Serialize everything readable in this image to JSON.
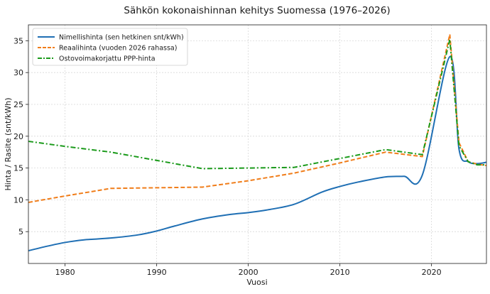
{
  "chart_data": {
    "type": "line",
    "title": "Sähkön kokonaishinnan kehitys Suomessa (1976–2026)",
    "xlabel": "Vuosi",
    "ylabel": "Hinta / Rasite (snt/kWh)",
    "xlim": [
      1976,
      2026
    ],
    "ylim": [
      0,
      37.5
    ],
    "xticks": [
      1980,
      1990,
      2000,
      2010,
      2020
    ],
    "yticks": [
      5,
      10,
      15,
      20,
      25,
      30,
      35
    ],
    "grid": true,
    "legend_position": "top-left",
    "series": [
      {
        "name": "Nimellishinta (sen hetkinen snt/kWh)",
        "color": "#1f6fb4",
        "style": "solid",
        "x": [
          1976,
          1978,
          1980,
          1982,
          1985,
          1988,
          1990,
          1992,
          1995,
          1998,
          2000,
          2002,
          2005,
          2008,
          2010,
          2012,
          2015,
          2017,
          2019,
          2022,
          2023,
          2024,
          2025,
          2026
        ],
        "values": [
          2.0,
          2.7,
          3.3,
          3.7,
          4.0,
          4.5,
          5.1,
          5.9,
          7.0,
          7.7,
          8.0,
          8.4,
          9.3,
          11.2,
          12.1,
          12.8,
          13.6,
          13.7,
          13.9,
          32.5,
          18.0,
          16.0,
          15.7,
          15.9
        ]
      },
      {
        "name": "Reaalihinta (vuoden 2026 rahassa)",
        "color": "#f07d1a",
        "style": "dashed",
        "x": [
          1976,
          1980,
          1985,
          1990,
          1995,
          2000,
          2005,
          2010,
          2015,
          2019,
          2022,
          2023,
          2024,
          2025,
          2026
        ],
        "values": [
          9.6,
          10.6,
          11.8,
          11.9,
          12.0,
          13.0,
          14.2,
          15.8,
          17.5,
          16.8,
          36.0,
          19.0,
          16.0,
          15.6,
          15.4
        ]
      },
      {
        "name": "Ostovoimakorjattu PPP-hinta",
        "color": "#1a9a1a",
        "style": "dashdot",
        "x": [
          1976,
          1980,
          1985,
          1990,
          1995,
          2000,
          2005,
          2010,
          2015,
          2019,
          2022,
          2023,
          2024,
          2025,
          2026
        ],
        "values": [
          19.2,
          18.4,
          17.5,
          16.2,
          14.9,
          15.0,
          15.1,
          16.5,
          17.9,
          17.1,
          35.2,
          18.5,
          16.0,
          15.5,
          15.5
        ]
      }
    ]
  }
}
